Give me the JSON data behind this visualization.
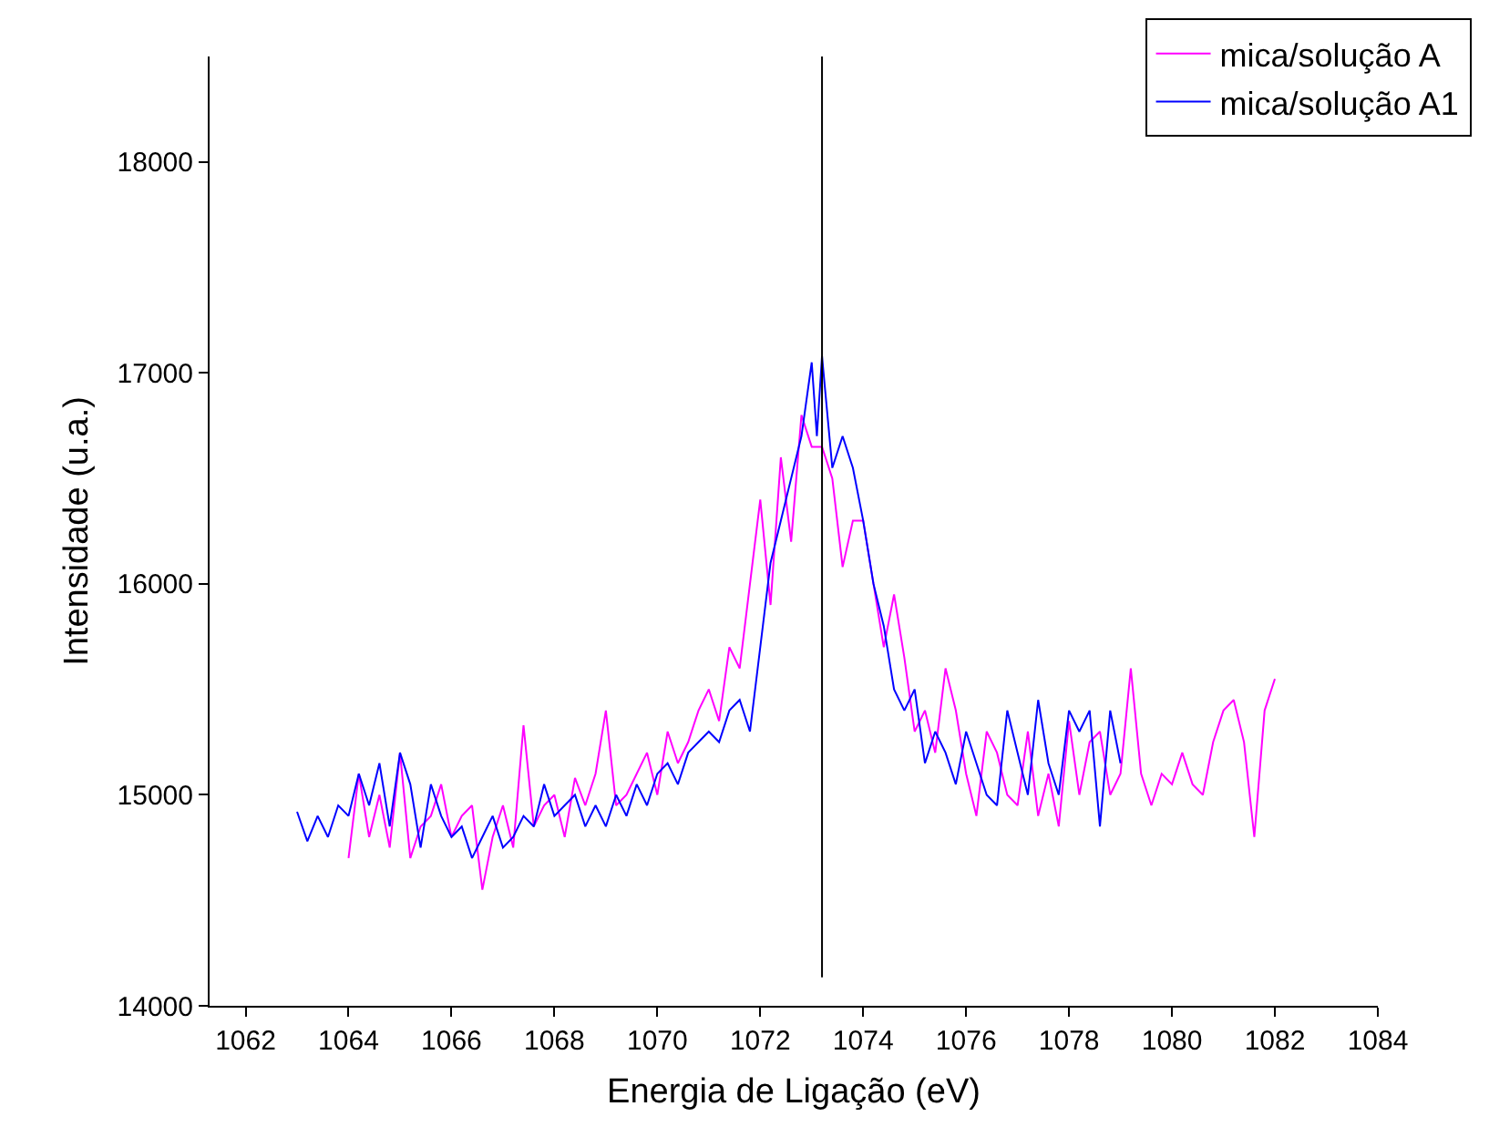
{
  "chart_data": {
    "type": "line",
    "xlabel": "Energia de Ligação (eV)",
    "ylabel": "Intensidade (u.a.)",
    "xlim": [
      1061.3,
      1084
    ],
    "xticks": [
      1062,
      1064,
      1066,
      1068,
      1070,
      1072,
      1074,
      1076,
      1078,
      1080,
      1082,
      1084
    ],
    "ylim": [
      14000,
      18500
    ],
    "yticks": [
      14000,
      15000,
      16000,
      17000,
      18000
    ],
    "grid": false,
    "legend": "top right",
    "marker": "none",
    "line_style": "solid",
    "ref_lines": [
      {
        "axis": "x",
        "value": 1073.2,
        "color": "#000000"
      }
    ],
    "series": [
      {
        "name": "mica/solução A",
        "color": "#ff00ff",
        "x": [
          1064.0,
          1064.2,
          1064.4,
          1064.6,
          1064.8,
          1065.0,
          1065.2,
          1065.4,
          1065.6,
          1065.8,
          1066.0,
          1066.2,
          1066.4,
          1066.6,
          1066.8,
          1067.0,
          1067.2,
          1067.4,
          1067.6,
          1067.8,
          1068.0,
          1068.2,
          1068.4,
          1068.6,
          1068.8,
          1069.0,
          1069.2,
          1069.4,
          1069.6,
          1069.8,
          1070.0,
          1070.2,
          1070.4,
          1070.6,
          1070.8,
          1071.0,
          1071.2,
          1071.4,
          1071.6,
          1071.8,
          1072.0,
          1072.2,
          1072.4,
          1072.6,
          1072.8,
          1073.0,
          1073.2,
          1073.4,
          1073.6,
          1073.8,
          1074.0,
          1074.2,
          1074.4,
          1074.6,
          1074.8,
          1075.0,
          1075.2,
          1075.4,
          1075.6,
          1075.8,
          1076.0,
          1076.2,
          1076.4,
          1076.6,
          1076.8,
          1077.0,
          1077.2,
          1077.4,
          1077.6,
          1077.8,
          1078.0,
          1078.2,
          1078.4,
          1078.6,
          1078.8,
          1079.0,
          1079.2,
          1079.4,
          1079.6,
          1079.8,
          1080.0,
          1080.2,
          1080.4,
          1080.6,
          1080.8,
          1081.0,
          1081.2,
          1081.4,
          1081.6,
          1081.8,
          1082.0
        ],
        "values": [
          14700,
          15100,
          14800,
          15000,
          14750,
          15200,
          14700,
          14850,
          14900,
          15050,
          14800,
          14900,
          14950,
          14550,
          14800,
          14950,
          14750,
          15330,
          14850,
          14950,
          15000,
          14800,
          15080,
          14950,
          15100,
          15400,
          14950,
          15000,
          15100,
          15200,
          15000,
          15300,
          15150,
          15250,
          15400,
          15500,
          15350,
          15700,
          15600,
          16000,
          16400,
          15900,
          16600,
          16200,
          16800,
          16650,
          16650,
          16500,
          16080,
          16300,
          16300,
          16000,
          15700,
          15950,
          15650,
          15300,
          15400,
          15200,
          15600,
          15400,
          15100,
          14900,
          15300,
          15200,
          15000,
          14950,
          15300,
          14900,
          15100,
          14850,
          15350,
          15000,
          15250,
          15300,
          15000,
          15100,
          15600,
          15100,
          14950,
          15100,
          15050,
          15200,
          15050,
          15000,
          15250,
          15400,
          15450,
          15250,
          14800,
          15400,
          15550
        ]
      },
      {
        "name": "mica/solução A1",
        "color": "#0000ff",
        "x": [
          1063.0,
          1063.2,
          1063.4,
          1063.6,
          1063.8,
          1064.0,
          1064.2,
          1064.4,
          1064.6,
          1064.8,
          1065.0,
          1065.2,
          1065.4,
          1065.6,
          1065.8,
          1066.0,
          1066.2,
          1066.4,
          1066.6,
          1066.8,
          1067.0,
          1067.2,
          1067.4,
          1067.6,
          1067.8,
          1068.0,
          1068.2,
          1068.4,
          1068.6,
          1068.8,
          1069.0,
          1069.2,
          1069.4,
          1069.6,
          1069.8,
          1070.0,
          1070.2,
          1070.4,
          1070.6,
          1070.8,
          1071.0,
          1071.2,
          1071.4,
          1071.6,
          1071.8,
          1072.0,
          1072.2,
          1072.4,
          1072.6,
          1072.8,
          1073.0,
          1073.1,
          1073.2,
          1073.4,
          1073.6,
          1073.8,
          1074.0,
          1074.2,
          1074.4,
          1074.6,
          1074.8,
          1075.0,
          1075.2,
          1075.4,
          1075.6,
          1075.8,
          1076.0,
          1076.2,
          1076.4,
          1076.6,
          1076.8,
          1077.0,
          1077.2,
          1077.4,
          1077.6,
          1077.8,
          1078.0,
          1078.2,
          1078.4,
          1078.6,
          1078.8,
          1079.0
        ],
        "values": [
          14920,
          14780,
          14900,
          14800,
          14950,
          14900,
          15100,
          14950,
          15150,
          14850,
          15200,
          15050,
          14750,
          15050,
          14900,
          14800,
          14850,
          14700,
          14800,
          14900,
          14750,
          14800,
          14900,
          14850,
          15050,
          14900,
          14950,
          15000,
          14850,
          14950,
          14850,
          15000,
          14900,
          15050,
          14950,
          15100,
          15150,
          15050,
          15200,
          15250,
          15300,
          15250,
          15400,
          15450,
          15300,
          15700,
          16100,
          16300,
          16500,
          16700,
          17050,
          16700,
          17080,
          16550,
          16700,
          16550,
          16300,
          16000,
          15800,
          15500,
          15400,
          15500,
          15150,
          15300,
          15200,
          15050,
          15300,
          15150,
          15000,
          14950,
          15400,
          15200,
          15000,
          15450,
          15150,
          15000,
          15400,
          15300,
          15400,
          14850,
          15400,
          15150
        ]
      }
    ]
  }
}
